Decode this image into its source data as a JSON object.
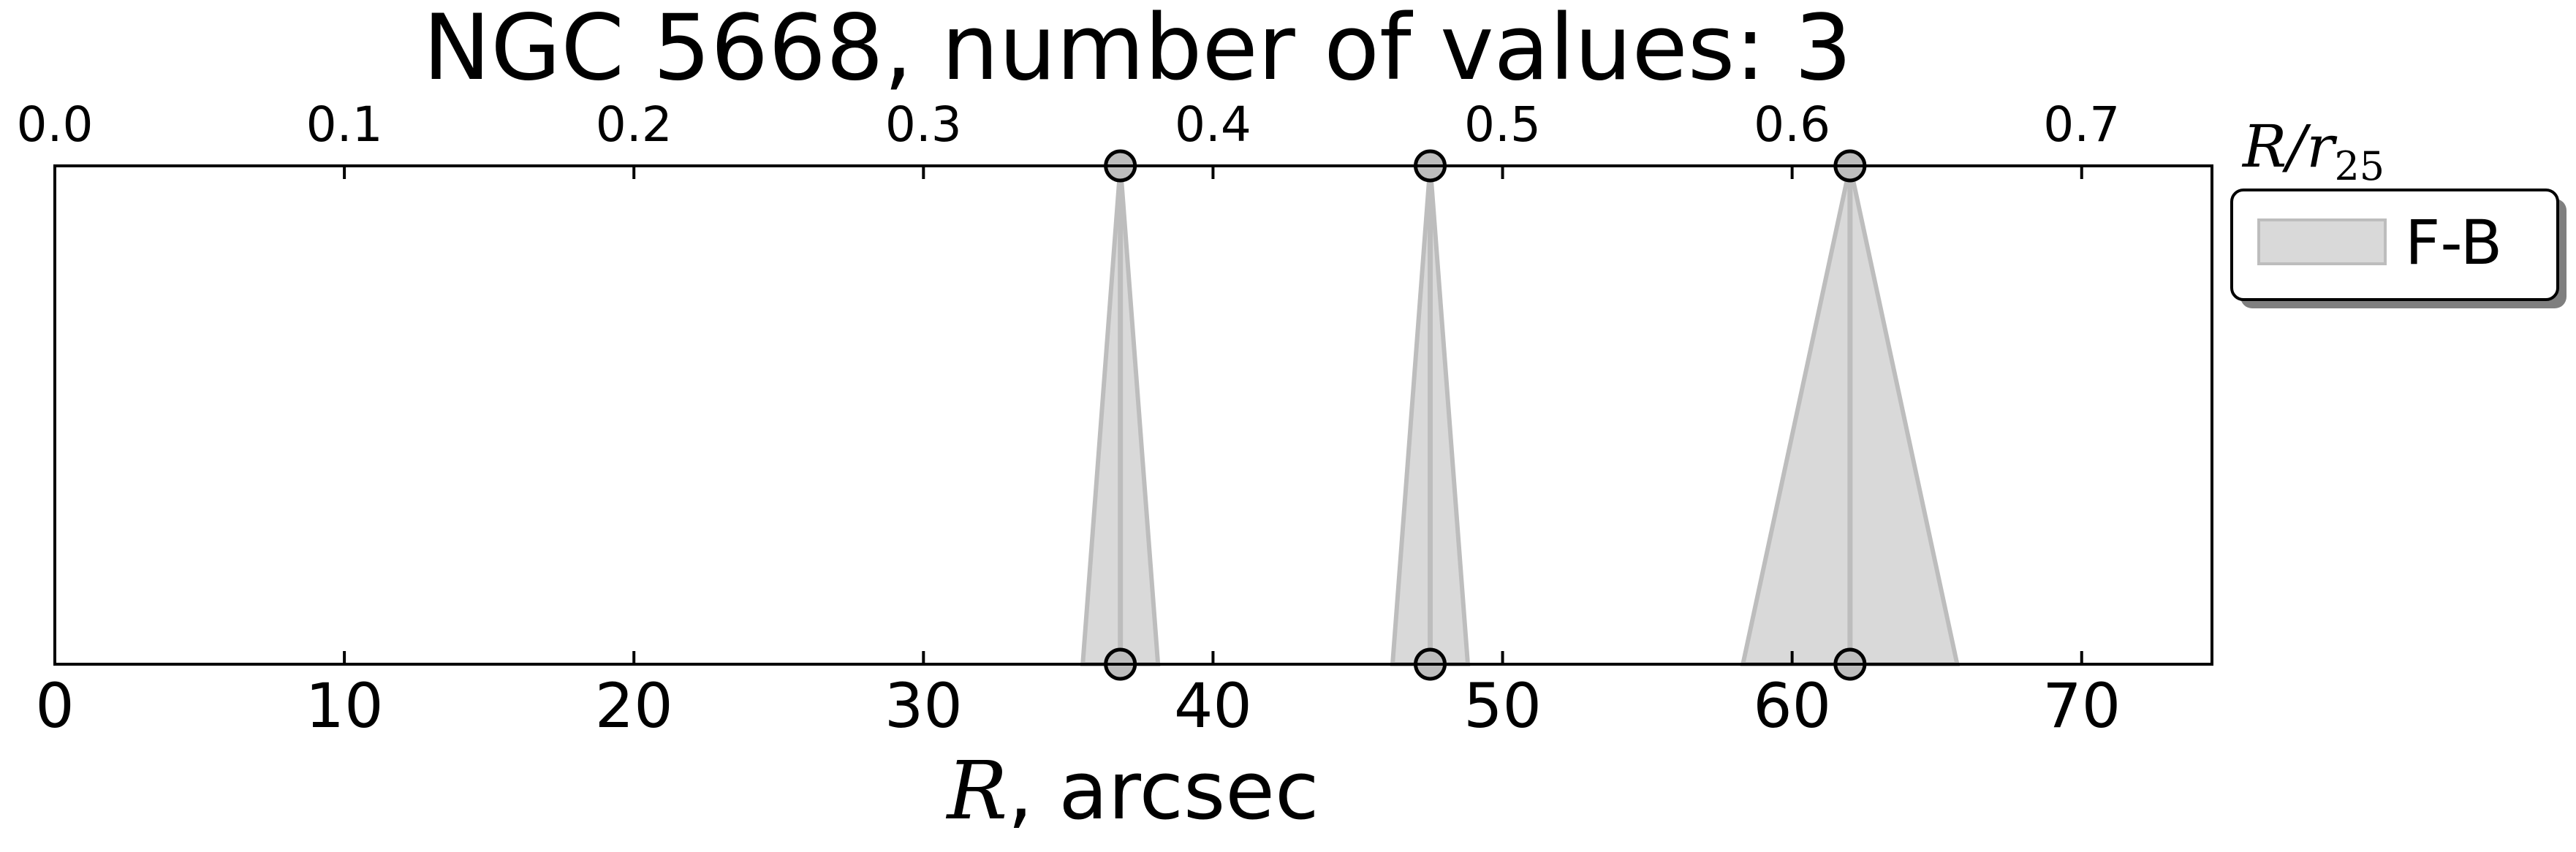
{
  "chart_data": {
    "type": "scatter",
    "title": "NGC 5668, number of values: 3",
    "xlabel_var": "R",
    "xlabel_rest": ", arcsec",
    "xlim": [
      0,
      74.5
    ],
    "xticks": [
      0,
      10,
      20,
      30,
      40,
      50,
      60,
      70
    ],
    "xtick_labels": [
      "0",
      "10",
      "20",
      "30",
      "40",
      "50",
      "60",
      "70"
    ],
    "top_axis": {
      "label_var": "R/r",
      "label_sub": "25",
      "lim": [
        0,
        0.745
      ],
      "ticks": [
        0.0,
        0.1,
        0.2,
        0.3,
        0.4,
        0.5,
        0.6,
        0.7
      ],
      "tick_labels": [
        "0.0",
        "0.1",
        "0.2",
        "0.3",
        "0.4",
        "0.5",
        "0.6",
        "0.7"
      ]
    },
    "grid": false,
    "legend_position": "outside-right-top",
    "series": [
      {
        "name": "F-B",
        "color": "#d9d9d9",
        "edge_color": "#bdbdbd",
        "points": [
          {
            "x": 36.8,
            "err": 1.3
          },
          {
            "x": 47.5,
            "err": 1.3
          },
          {
            "x": 62.0,
            "err": 3.7
          }
        ]
      }
    ]
  }
}
